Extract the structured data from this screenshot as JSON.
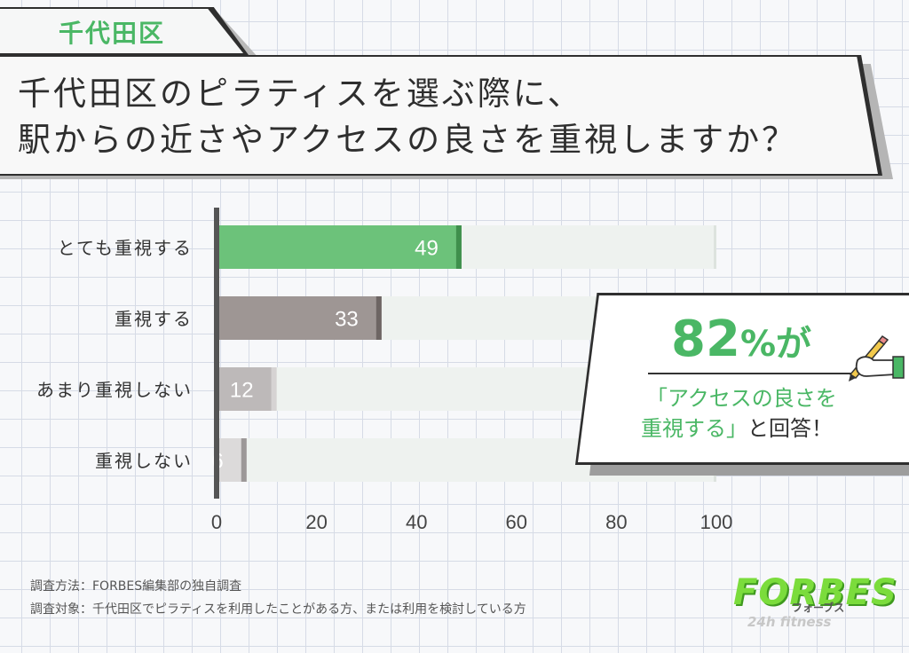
{
  "tag": {
    "label": "千代田区"
  },
  "title": {
    "line1": "千代田区のピラティスを選ぶ際に、",
    "line2": "駅からの近さやアクセスの良さを重視しますか？"
  },
  "chart_data": {
    "type": "bar",
    "orientation": "horizontal",
    "categories": [
      "とても重視する",
      "重視する",
      "あまり重視しない",
      "重視しない"
    ],
    "values": [
      49,
      33,
      12,
      6
    ],
    "xlim": [
      0,
      100
    ],
    "xticks": [
      0,
      20,
      40,
      60,
      80,
      100
    ],
    "bar_colors": [
      "#6cc27a",
      "#9e9694",
      "#bdb9b9",
      "#dcdada"
    ],
    "bar_end_colors": [
      "#3f8f4c",
      "#6d6563",
      "#d6d3d3",
      "#9c9898"
    ],
    "track_color": "#eef2ef"
  },
  "callout": {
    "big_number": "82",
    "big_suffix": "%が",
    "line1": "「アクセスの良さを",
    "line2_green": "重視する」",
    "line2_rest": "と回答！"
  },
  "footnotes": {
    "method": "調査方法：FORBES編集部の独自調査",
    "target": "調査対象：千代田区でピラティスを利用したことがある方、または利用を検討している方"
  },
  "logo": {
    "main": "FORBES",
    "kana": "フォーブス",
    "sub": "24h fitness"
  },
  "colors": {
    "accent": "#4ab765",
    "dark": "#2f2f2f"
  },
  "icons": [
    "hand-writing-icon"
  ]
}
